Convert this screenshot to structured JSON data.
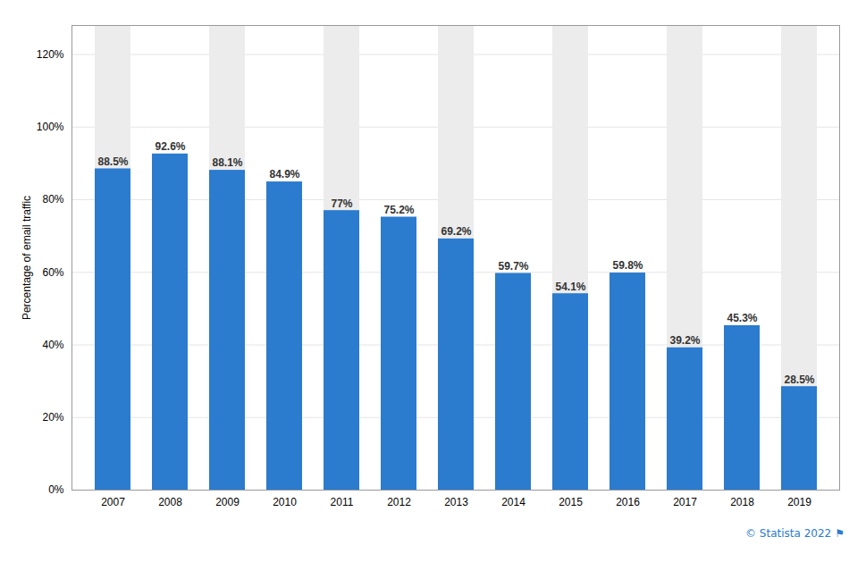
{
  "chart_data": {
    "type": "bar",
    "categories": [
      "2007",
      "2008",
      "2009",
      "2010",
      "2011",
      "2012",
      "2013",
      "2014",
      "2015",
      "2016",
      "2017",
      "2018",
      "2019"
    ],
    "values": [
      88.5,
      92.6,
      88.1,
      84.9,
      77.0,
      75.2,
      69.2,
      59.7,
      54.1,
      59.8,
      39.2,
      45.3,
      28.5
    ],
    "value_labels": [
      "88.5%",
      "92.6%",
      "88.1%",
      "84.9%",
      "77%",
      "75.2%",
      "69.2%",
      "59.7%",
      "54.1%",
      "59.8%",
      "39.2%",
      "45.3%",
      "28.5%"
    ],
    "data_labels": true,
    "color": "#2b7bce",
    "ylabel": "Percentage of email traffic",
    "ylim": [
      0,
      128
    ],
    "yticks": [
      {
        "value": 0,
        "label": "0%"
      },
      {
        "value": 20,
        "label": "20%"
      },
      {
        "value": 40,
        "label": "40%"
      },
      {
        "value": 60,
        "label": "60%"
      },
      {
        "value": 80,
        "label": "80%"
      },
      {
        "value": 100,
        "label": "100%"
      },
      {
        "value": 120,
        "label": "120%"
      }
    ],
    "grid": true,
    "annotations": [
      "© Statista 2022",
      "⚑"
    ]
  }
}
